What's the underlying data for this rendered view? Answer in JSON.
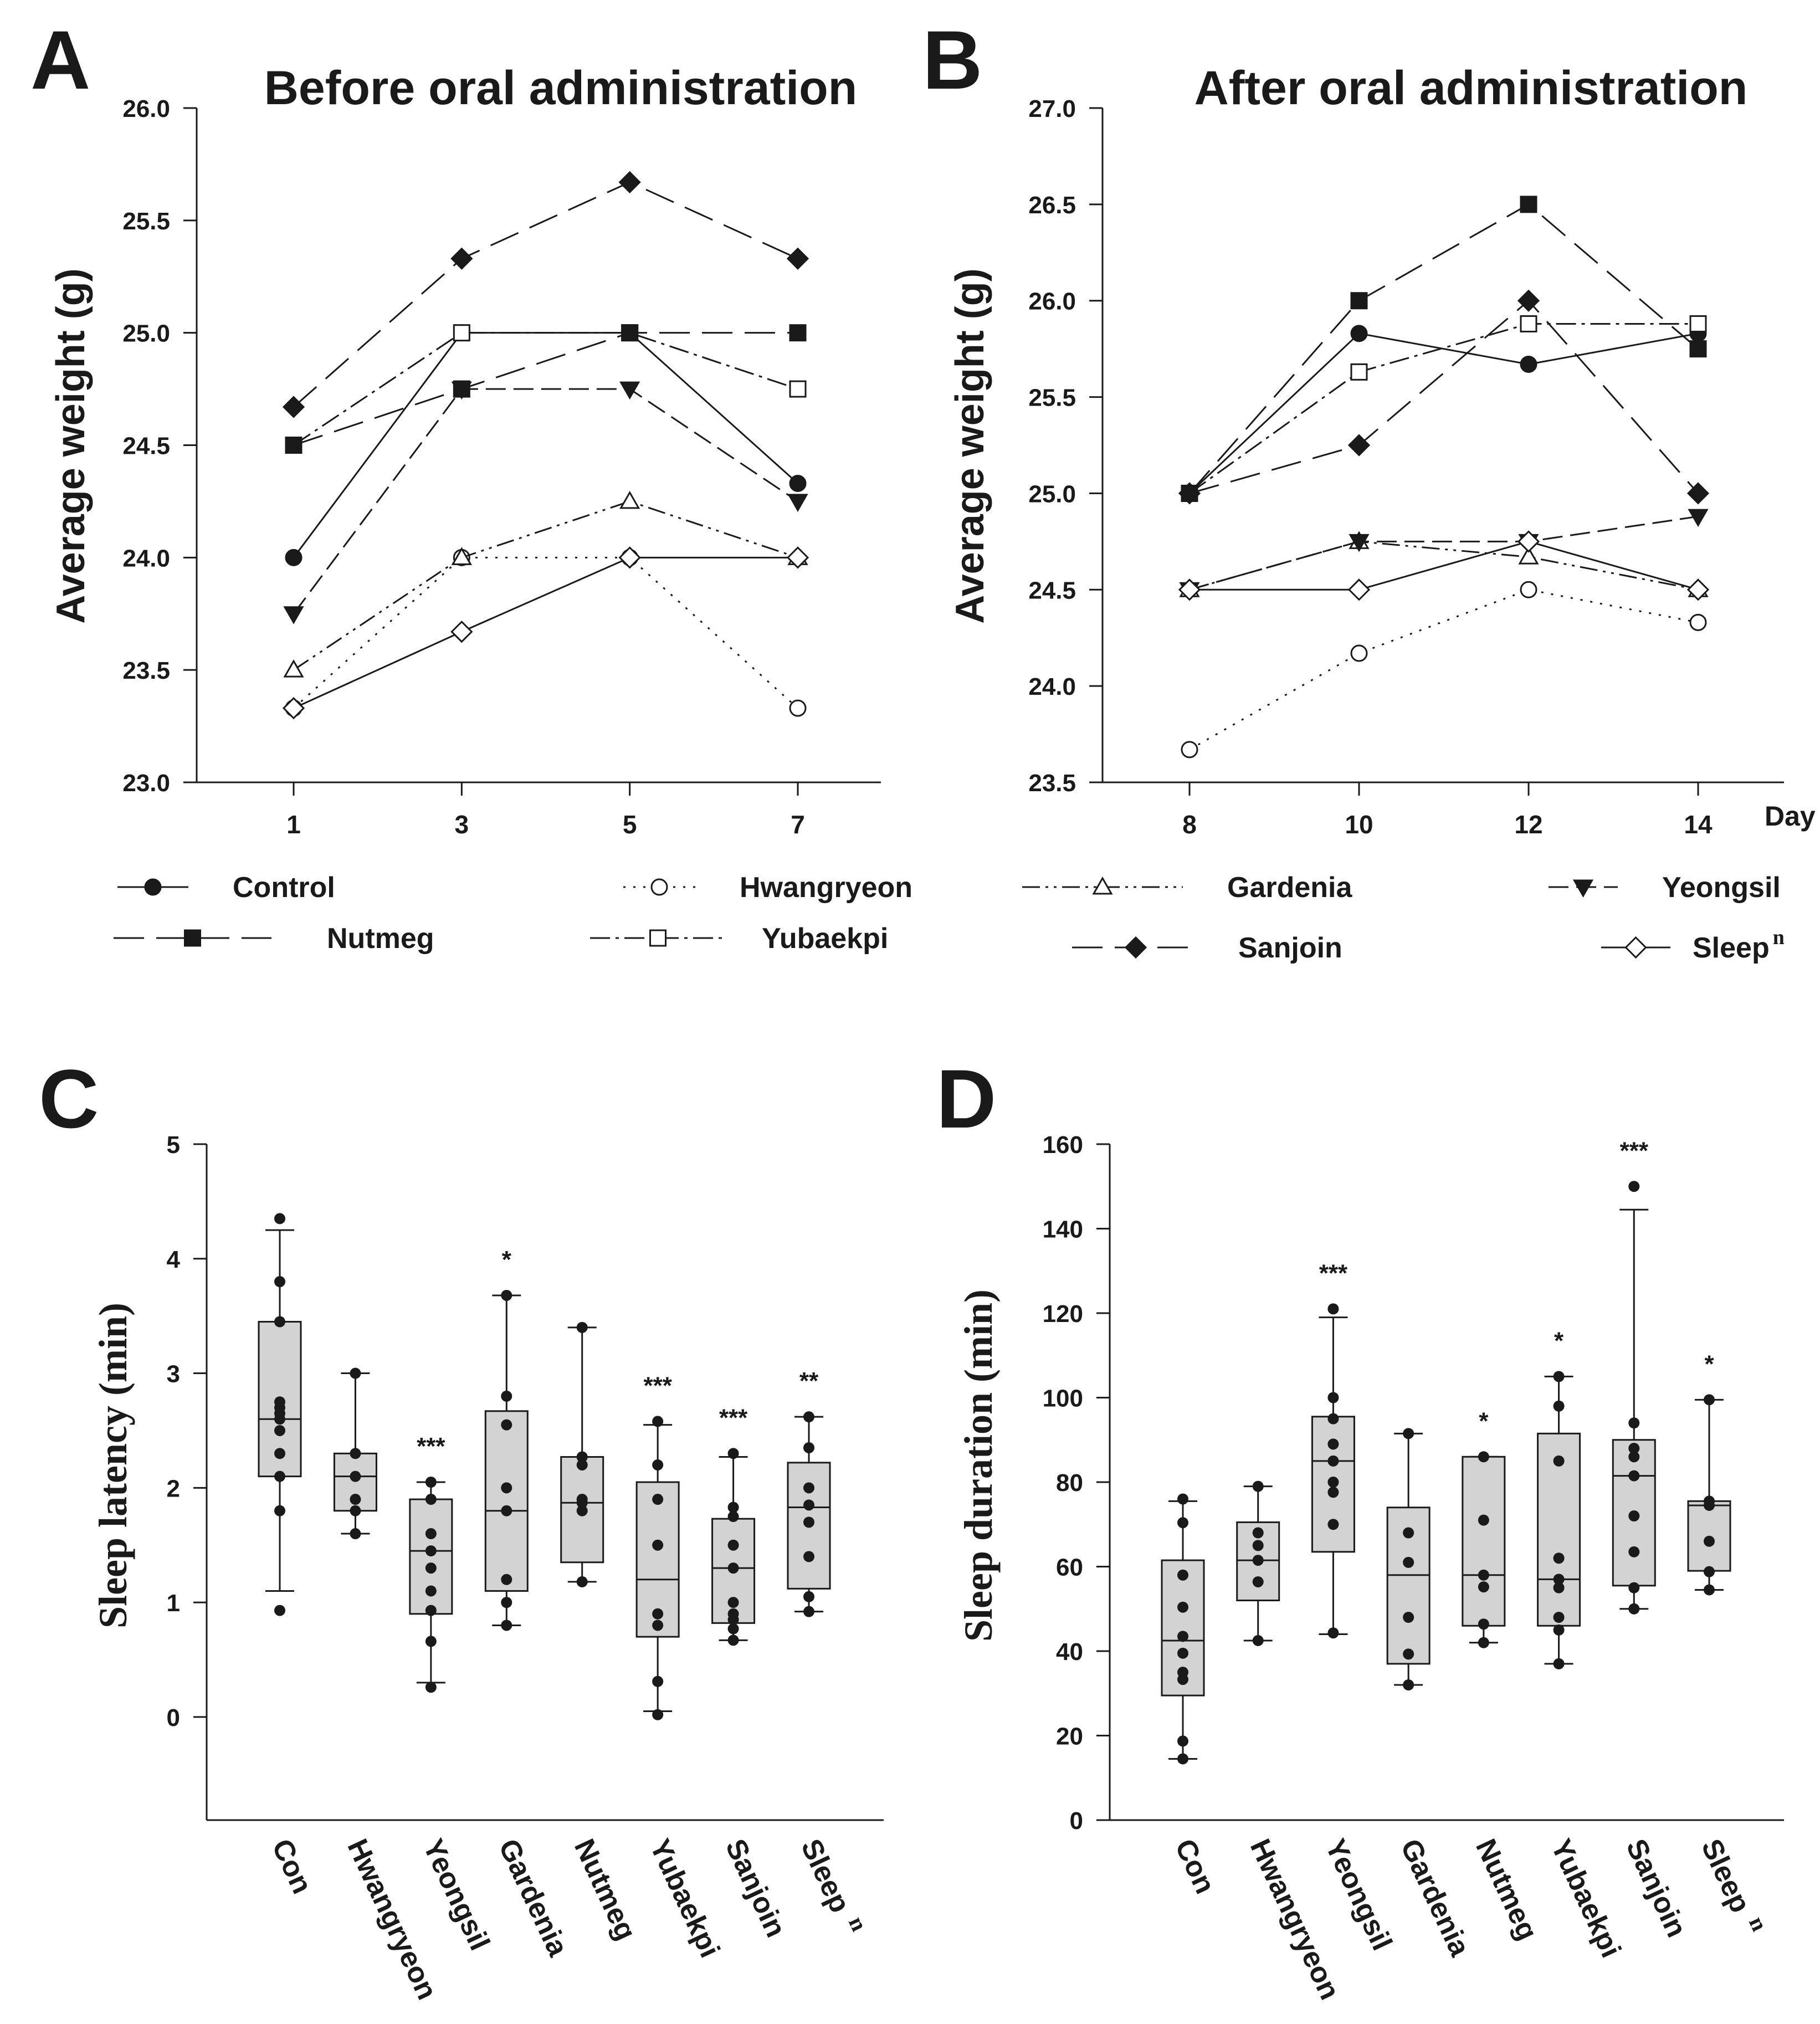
{
  "chart_data": [
    {
      "panel": "A",
      "type": "line",
      "title": "Before oral administration",
      "xlabel": "",
      "ylabel": "Average weight (g)",
      "x": [
        1,
        3,
        5,
        7
      ],
      "x_tick_labels": [
        "1",
        "3",
        "5",
        "7"
      ],
      "ylim": [
        23.0,
        26.0
      ],
      "y_ticks": [
        "23.0",
        "23.5",
        "24.0",
        "24.5",
        "25.0",
        "25.5",
        "26.0"
      ],
      "grid": false,
      "series": [
        {
          "name": "Control",
          "values": [
            24.0,
            25.0,
            25.0,
            24.33
          ]
        },
        {
          "name": "Hwangryeon",
          "values": [
            23.33,
            24.0,
            24.0,
            23.33
          ]
        },
        {
          "name": "Gardenia",
          "values": [
            23.5,
            24.0,
            24.25,
            24.0
          ]
        },
        {
          "name": "Yeongsil",
          "values": [
            23.75,
            24.75,
            24.75,
            24.25
          ]
        },
        {
          "name": "Nutmeg",
          "values": [
            24.5,
            24.75,
            25.0,
            25.0
          ]
        },
        {
          "name": "Yubaekpi",
          "values": [
            24.5,
            25.0,
            25.0,
            24.75
          ]
        },
        {
          "name": "Sanjoin",
          "values": [
            24.67,
            25.33,
            25.67,
            25.33
          ]
        },
        {
          "name": "Sleep n",
          "values": [
            23.33,
            23.67,
            24.0,
            24.0
          ]
        }
      ]
    },
    {
      "panel": "B",
      "type": "line",
      "title": "After oral administration",
      "xlabel": "Day",
      "ylabel": "Average weight (g)",
      "x": [
        8,
        10,
        12,
        14
      ],
      "x_tick_labels": [
        "8",
        "10",
        "12",
        "14"
      ],
      "ylim": [
        23.5,
        27.0
      ],
      "y_ticks": [
        "23.5",
        "24.0",
        "24.5",
        "25.0",
        "25.5",
        "26.0",
        "26.5",
        "27.0"
      ],
      "grid": false,
      "series": [
        {
          "name": "Control",
          "values": [
            25.0,
            25.83,
            25.67,
            25.83
          ]
        },
        {
          "name": "Hwangryeon",
          "values": [
            23.67,
            24.17,
            24.5,
            24.33
          ]
        },
        {
          "name": "Gardenia",
          "values": [
            24.5,
            24.75,
            24.67,
            24.5
          ]
        },
        {
          "name": "Yeongsil",
          "values": [
            24.5,
            24.75,
            24.75,
            24.88
          ]
        },
        {
          "name": "Nutmeg",
          "values": [
            25.0,
            26.0,
            26.5,
            25.75
          ]
        },
        {
          "name": "Yubaekpi",
          "values": [
            25.0,
            25.63,
            25.88,
            25.88
          ]
        },
        {
          "name": "Sanjoin",
          "values": [
            25.0,
            25.25,
            26.0,
            25.0
          ]
        },
        {
          "name": "Sleep n",
          "values": [
            24.5,
            24.5,
            24.75,
            24.5
          ]
        }
      ]
    },
    {
      "panel": "C",
      "type": "box",
      "ylabel": "Sleep latency (min)",
      "ylim": [
        -0.9,
        5
      ],
      "y_ticks": [
        "0",
        "1",
        "2",
        "3",
        "4",
        "5"
      ],
      "categories": [
        "Con",
        "Hwangryeon",
        "Yeongsil",
        "Gardenia",
        "Nutmeg",
        "Yubaekpi",
        "Sanjoin",
        "Sleep n"
      ],
      "boxes": [
        {
          "whisker_low": 1.1,
          "q1": 2.1,
          "median": 2.6,
          "q3": 3.45,
          "whisker_high": 4.25,
          "sig": "",
          "points": [
            0.93,
            1.8,
            2.1,
            2.3,
            2.5,
            2.6,
            2.65,
            2.7,
            2.75,
            3.45,
            3.8,
            4.35
          ]
        },
        {
          "whisker_low": 1.6,
          "q1": 1.8,
          "median": 2.1,
          "q3": 2.3,
          "whisker_high": 3.0,
          "sig": "",
          "points": [
            1.6,
            1.8,
            1.9,
            2.1,
            2.3,
            3.0
          ]
        },
        {
          "whisker_low": 0.3,
          "q1": 0.9,
          "median": 1.45,
          "q3": 1.9,
          "whisker_high": 2.05,
          "sig": "***",
          "points": [
            0.26,
            0.66,
            0.93,
            1.1,
            1.3,
            1.45,
            1.6,
            1.9,
            2.05
          ]
        },
        {
          "whisker_low": 0.8,
          "q1": 1.1,
          "median": 1.8,
          "q3": 2.67,
          "whisker_high": 3.68,
          "sig": "*",
          "points": [
            0.8,
            1.0,
            1.2,
            1.8,
            2.0,
            2.55,
            2.8,
            3.68
          ]
        },
        {
          "whisker_low": 1.18,
          "q1": 1.35,
          "median": 1.87,
          "q3": 2.27,
          "whisker_high": 3.4,
          "sig": "",
          "points": [
            1.18,
            1.8,
            1.87,
            1.9,
            2.2,
            2.27,
            3.4
          ]
        },
        {
          "whisker_low": 0.05,
          "q1": 0.7,
          "median": 1.2,
          "q3": 2.05,
          "whisker_high": 2.55,
          "sig": "***",
          "points": [
            0.02,
            0.31,
            0.8,
            0.9,
            1.5,
            1.9,
            2.2,
            2.58
          ]
        },
        {
          "whisker_low": 0.67,
          "q1": 0.82,
          "median": 1.3,
          "q3": 1.73,
          "whisker_high": 2.27,
          "sig": "***",
          "points": [
            0.67,
            0.77,
            0.85,
            0.9,
            1.0,
            1.3,
            1.5,
            1.75,
            1.83,
            2.3
          ]
        },
        {
          "whisker_low": 0.92,
          "q1": 1.12,
          "median": 1.83,
          "q3": 2.22,
          "whisker_high": 2.62,
          "sig": "**",
          "points": [
            0.92,
            1.05,
            1.4,
            1.7,
            1.85,
            2.0,
            2.35,
            2.62
          ]
        }
      ]
    },
    {
      "panel": "D",
      "type": "box",
      "ylabel": "Sleep duration (min)",
      "ylim": [
        0,
        160
      ],
      "y_ticks": [
        "0",
        "20",
        "40",
        "60",
        "80",
        "100",
        "120",
        "140",
        "160"
      ],
      "categories": [
        "Con",
        "Hwangryeon",
        "Yeongsil",
        "Gardenia",
        "Nutmeg",
        "Yubaekpi",
        "Sanjoin",
        "Sleep n"
      ],
      "boxes": [
        {
          "whisker_low": 14.5,
          "q1": 29.5,
          "median": 42.5,
          "q3": 61.5,
          "whisker_high": 75.5,
          "sig": "",
          "points": [
            14.5,
            18.7,
            33.3,
            35.0,
            39.5,
            43.5,
            50.4,
            58.0,
            70.4,
            76.0
          ]
        },
        {
          "whisker_low": 42.5,
          "q1": 52.0,
          "median": 61.5,
          "q3": 70.5,
          "whisker_high": 79.0,
          "sig": "",
          "points": [
            42.5,
            56.4,
            61.5,
            65.0,
            68.0,
            79.0
          ]
        },
        {
          "whisker_low": 44.0,
          "q1": 63.5,
          "median": 85.0,
          "q3": 95.5,
          "whisker_high": 119.0,
          "sig": "***",
          "points": [
            44.3,
            70.0,
            77.6,
            80.0,
            85.0,
            89.0,
            95.0,
            100.0,
            121.0
          ]
        },
        {
          "whisker_low": 32.0,
          "q1": 37.0,
          "median": 58.0,
          "q3": 74.0,
          "whisker_high": 91.5,
          "sig": "",
          "points": [
            32.0,
            39.3,
            48.0,
            61.0,
            68.0,
            91.5
          ]
        },
        {
          "whisker_low": 42.0,
          "q1": 46.0,
          "median": 58.0,
          "q3": 86.0,
          "whisker_high": 86.0,
          "sig": "*",
          "points": [
            42.0,
            46.4,
            55.2,
            58.0,
            71.0,
            86.0
          ]
        },
        {
          "whisker_low": 37.0,
          "q1": 46.0,
          "median": 57.0,
          "q3": 91.5,
          "whisker_high": 105.0,
          "sig": "*",
          "points": [
            37.0,
            45.0,
            48.0,
            55.0,
            57.0,
            62.0,
            85.0,
            98.0,
            105.0
          ]
        },
        {
          "whisker_low": 50.0,
          "q1": 55.5,
          "median": 81.5,
          "q3": 90.0,
          "whisker_high": 144.5,
          "sig": "***",
          "points": [
            50.0,
            55.0,
            63.5,
            72.0,
            81.5,
            86.0,
            88.0,
            94.0,
            150.0
          ]
        },
        {
          "whisker_low": 54.5,
          "q1": 59.0,
          "median": 74.5,
          "q3": 75.5,
          "whisker_high": 99.5,
          "sig": "*",
          "points": [
            54.5,
            58.8,
            66.0,
            74.5,
            75.5,
            99.5
          ]
        }
      ]
    }
  ],
  "panel_labels": [
    "A",
    "B",
    "C",
    "D"
  ],
  "legend": [
    {
      "name": "Control",
      "label": "Control",
      "sup": ""
    },
    {
      "name": "Hwangryeon",
      "label": "Hwangryeon",
      "sup": ""
    },
    {
      "name": "Gardenia",
      "label": "Gardenia",
      "sup": ""
    },
    {
      "name": "Yeongsil",
      "label": "Yeongsil",
      "sup": ""
    },
    {
      "name": "Nutmeg",
      "label": "Nutmeg",
      "sup": ""
    },
    {
      "name": "Yubaekpi",
      "label": "Yubaekpi",
      "sup": ""
    },
    {
      "name": "Sanjoin",
      "label": "Sanjoin",
      "sup": ""
    },
    {
      "name": "Sleep n",
      "label": "Sleep",
      "sup": "n"
    }
  ],
  "category_labels": [
    {
      "label": "Con",
      "sup": ""
    },
    {
      "label": "Hwangryeon",
      "sup": ""
    },
    {
      "label": "Yeongsil",
      "sup": ""
    },
    {
      "label": "Gardenia",
      "sup": ""
    },
    {
      "label": "Nutmeg",
      "sup": ""
    },
    {
      "label": "Yubaekpi",
      "sup": ""
    },
    {
      "label": "Sanjoin",
      "sup": ""
    },
    {
      "label": "Sleep",
      "sup": "n"
    }
  ],
  "colors": {
    "ink": "#1a1a1a",
    "box_fill": "#d3d3d3",
    "background": "#ffffff"
  }
}
